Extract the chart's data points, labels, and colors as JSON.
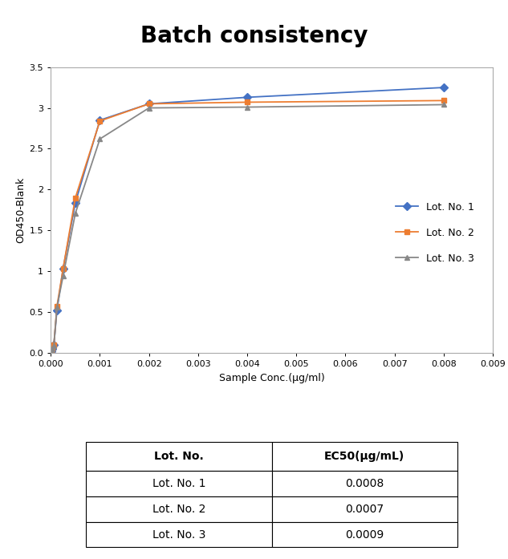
{
  "title": "Batch consistency",
  "xlabel": "Sample Conc.(μg/ml)",
  "ylabel": "OD450-Blank",
  "xlim": [
    0,
    0.009
  ],
  "ylim": [
    0,
    3.5
  ],
  "xticks": [
    0.0,
    0.001,
    0.002,
    0.003,
    0.004,
    0.005,
    0.006,
    0.007,
    0.008,
    0.009
  ],
  "yticks": [
    0.0,
    0.5,
    1.0,
    1.5,
    2.0,
    2.5,
    3.0,
    3.5
  ],
  "lot1": {
    "x": [
      1.56e-05,
      3.13e-05,
      6.25e-05,
      0.000125,
      0.00025,
      0.0005,
      0.001,
      0.002,
      0.004,
      0.008
    ],
    "y": [
      0.02,
      0.05,
      0.1,
      0.52,
      1.03,
      1.84,
      2.85,
      3.05,
      3.13,
      3.25
    ],
    "color": "#4472C4",
    "marker": "D",
    "markersize": 5,
    "label": "Lot. No. 1"
  },
  "lot2": {
    "x": [
      1.56e-05,
      3.13e-05,
      6.25e-05,
      0.000125,
      0.00025,
      0.0005,
      0.001,
      0.002,
      0.004,
      0.008
    ],
    "y": [
      0.02,
      0.05,
      0.1,
      0.57,
      1.03,
      1.9,
      2.84,
      3.05,
      3.07,
      3.09
    ],
    "color": "#ED7D31",
    "marker": "s",
    "markersize": 5,
    "label": "Lot. No. 2"
  },
  "lot3": {
    "x": [
      1.56e-05,
      3.13e-05,
      6.25e-05,
      0.000125,
      0.00025,
      0.0005,
      0.001,
      0.002,
      0.004,
      0.008
    ],
    "y": [
      0.02,
      0.05,
      0.09,
      0.56,
      0.94,
      1.71,
      2.62,
      3.0,
      3.01,
      3.04
    ],
    "color": "#888888",
    "marker": "^",
    "markersize": 5,
    "label": "Lot. No. 3"
  },
  "table_headers": [
    "Lot. No.",
    "EC50(μg/mL)"
  ],
  "table_rows": [
    [
      "Lot. No. 1",
      "0.0008"
    ],
    [
      "Lot. No. 2",
      "0.0007"
    ],
    [
      "Lot. No. 3",
      "0.0009"
    ]
  ],
  "background_color": "#FFFFFF",
  "plot_bg_color": "#FFFFFF",
  "chart_box_color": "#BBBBBB",
  "title_fontsize": 20,
  "axis_label_fontsize": 9,
  "tick_fontsize": 8,
  "legend_fontsize": 9
}
